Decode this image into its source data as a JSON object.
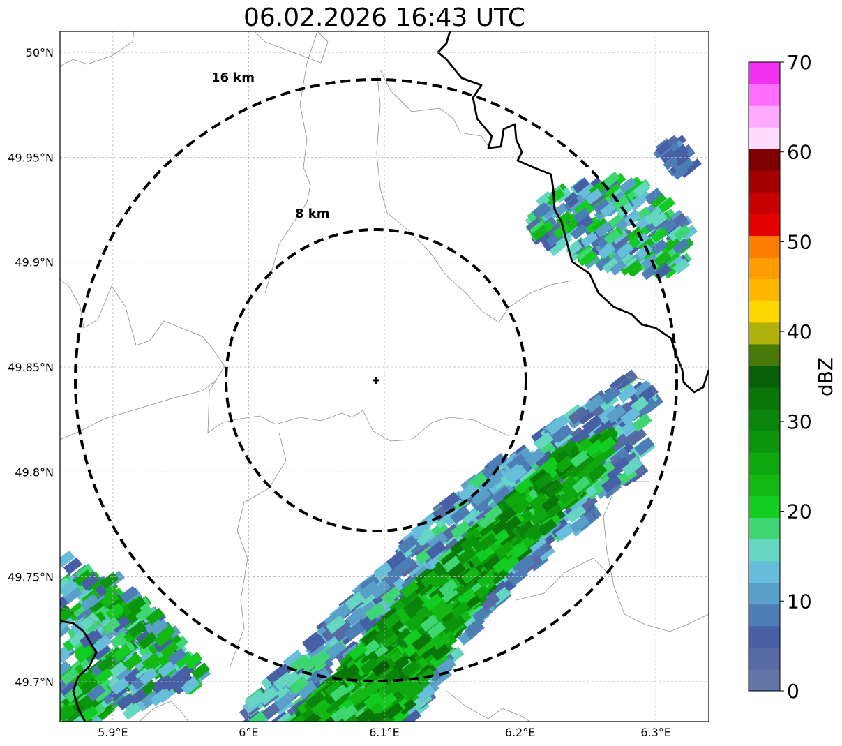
{
  "title": "06.02.2026 16:43 UTC",
  "map": {
    "lon_range": [
      5.861,
      6.339
    ],
    "lat_range": [
      49.681,
      50.01
    ],
    "lon_ticks": [
      {
        "value": 5.9,
        "label": "5.9°E"
      },
      {
        "value": 6.0,
        "label": "6°E"
      },
      {
        "value": 6.1,
        "label": "6.1°E"
      },
      {
        "value": 6.2,
        "label": "6.2°E"
      },
      {
        "value": 6.3,
        "label": "6.3°E"
      }
    ],
    "lat_ticks": [
      {
        "value": 50.0,
        "label": "50°N"
      },
      {
        "value": 49.95,
        "label": "49.95°N"
      },
      {
        "value": 49.9,
        "label": "49.9°N"
      },
      {
        "value": 49.85,
        "label": "49.85°N"
      },
      {
        "value": 49.8,
        "label": "49.8°N"
      },
      {
        "value": 49.75,
        "label": "49.75°N"
      },
      {
        "value": 49.7,
        "label": "49.7°N"
      }
    ],
    "gridlines": true,
    "radar_site": {
      "lon": 6.094,
      "lat": 49.843
    },
    "range_rings": [
      {
        "radius_km": 8,
        "label": "8 km"
      },
      {
        "radius_km": 16,
        "label": "16 km"
      }
    ]
  },
  "colorbar": {
    "label": "dBZ",
    "min": 0,
    "max": 70,
    "ticks": [
      "0",
      "10",
      "20",
      "30",
      "40",
      "50",
      "60",
      "70"
    ],
    "colors": [
      "#6376a8",
      "#566ba3",
      "#475fa4",
      "#4c7eb5",
      "#5a9fc8",
      "#67bedb",
      "#64d6c1",
      "#3ed672",
      "#12cc21",
      "#14b814",
      "#0fa70f",
      "#0c940c",
      "#0b840b",
      "#0a760a",
      "#075f07",
      "#497a09",
      "#b0b00a",
      "#ffd700",
      "#ffb800",
      "#ff9c00",
      "#ff7d00",
      "#e50000",
      "#c80000",
      "#a50000",
      "#7f0000",
      "#ffdcff",
      "#ffaaff",
      "#ff6eff",
      "#f032f0"
    ]
  },
  "chart_data": {
    "type": "heatmap",
    "title": "06.02.2026 16:43 UTC",
    "variable": "radar reflectivity",
    "unit": "dBZ",
    "value_range": [
      0,
      70
    ],
    "echoes": [
      {
        "region": "band southeast of radar",
        "lon_range": [
          6.0,
          6.3
        ],
        "lat_range": [
          49.681,
          49.84
        ],
        "typical_dBZ": [
          5,
          35
        ]
      },
      {
        "region": "northeast cluster",
        "lon_range": [
          6.2,
          6.34
        ],
        "lat_range": [
          49.89,
          49.96
        ],
        "typical_dBZ": [
          5,
          25
        ]
      },
      {
        "region": "southwest corner",
        "lon_range": [
          5.861,
          5.97
        ],
        "lat_range": [
          49.68,
          49.76
        ],
        "typical_dBZ": [
          5,
          30
        ]
      }
    ]
  }
}
